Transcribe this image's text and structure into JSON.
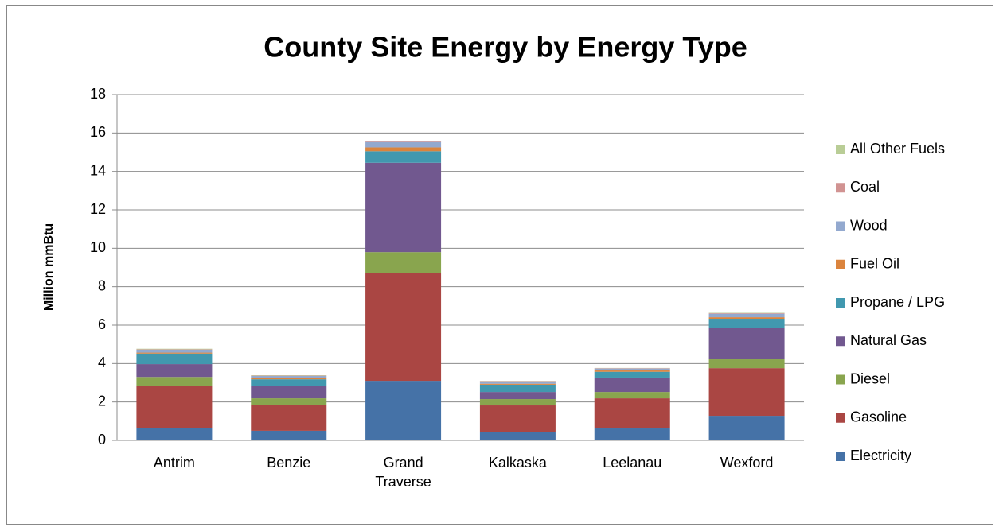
{
  "chart_data": {
    "type": "stacked_bar",
    "title": "County Site Energy by Energy Type",
    "y_label": "Million mmBtu",
    "categories": [
      "Antrim",
      "Benzie",
      "Grand Traverse",
      "Kalkaska",
      "Leelanau",
      "Wexford"
    ],
    "series": [
      {
        "name": "Electricity",
        "color": "#4572a7",
        "values": [
          0.65,
          0.5,
          3.1,
          0.42,
          0.62,
          1.28
        ]
      },
      {
        "name": "Gasoline",
        "color": "#aa4643",
        "values": [
          2.2,
          1.36,
          5.6,
          1.4,
          1.57,
          2.48
        ]
      },
      {
        "name": "Diesel",
        "color": "#89a54e",
        "values": [
          0.45,
          0.33,
          1.1,
          0.33,
          0.33,
          0.46
        ]
      },
      {
        "name": "Natural Gas",
        "color": "#71588f",
        "values": [
          0.67,
          0.66,
          4.65,
          0.37,
          0.75,
          1.65
        ]
      },
      {
        "name": "Propane / LPG",
        "color": "#4198af",
        "values": [
          0.55,
          0.33,
          0.6,
          0.38,
          0.3,
          0.46
        ]
      },
      {
        "name": "Fuel Oil",
        "color": "#db843d",
        "values": [
          0.05,
          0.05,
          0.2,
          0.05,
          0.07,
          0.08
        ]
      },
      {
        "name": "Wood",
        "color": "#93a9cf",
        "values": [
          0.15,
          0.12,
          0.28,
          0.12,
          0.1,
          0.18
        ]
      },
      {
        "name": "Coal",
        "color": "#d19392",
        "values": [
          0.02,
          0.02,
          0.03,
          0.02,
          0.02,
          0.03
        ]
      },
      {
        "name": "All Other Fuels",
        "color": "#b9cd96",
        "values": [
          0.03,
          0.02,
          0.02,
          0.01,
          0.01,
          0.02
        ]
      }
    ],
    "ylim": [
      0,
      18
    ],
    "yticks": [
      0,
      2,
      4,
      6,
      8,
      10,
      12,
      14,
      16,
      18
    ],
    "grid": true,
    "legend": "right"
  }
}
